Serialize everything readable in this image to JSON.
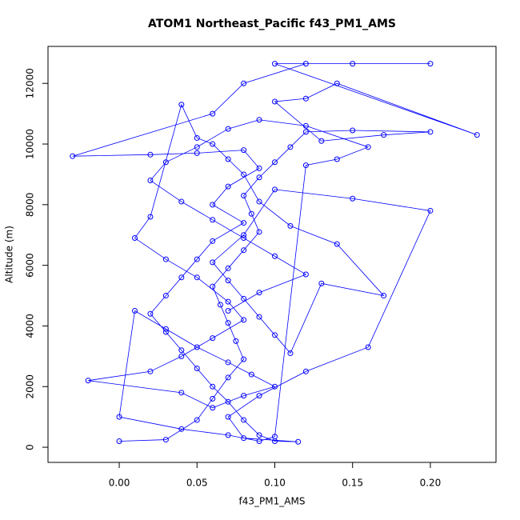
{
  "chart_data": {
    "type": "line",
    "markers": "circle",
    "title": "ATOM1 Northeast_Pacific f43_PM1_AMS",
    "x_label": "f43_PM1_AMS",
    "y_label": "Altitude (m)",
    "color": "#0000ff",
    "grid": false,
    "xlim": [
      -0.0458,
      0.2422
    ],
    "ylim": [
      -500,
      13220
    ],
    "xticks": [
      {
        "value": 0,
        "label": "0.00"
      },
      {
        "value": 0.05,
        "label": "0.05"
      },
      {
        "value": 0.1,
        "label": "0.10"
      },
      {
        "value": 0.15,
        "label": "0.15"
      },
      {
        "value": 0.2,
        "label": "0.20"
      }
    ],
    "yticks": [
      0,
      2000,
      4000,
      6000,
      8000,
      10000,
      12000
    ],
    "x": [
      0.0,
      0.03,
      0.05,
      0.06,
      0.07,
      0.08,
      0.075,
      0.07,
      0.065,
      0.06,
      0.07,
      0.08,
      0.09,
      0.085,
      0.08,
      0.09,
      0.1,
      0.11,
      0.12,
      0.15,
      0.2,
      0.17,
      0.13,
      0.1,
      0.12,
      0.14,
      0.23,
      0.1,
      0.15,
      0.2,
      0.12,
      0.08,
      0.06,
      -0.03,
      0.02,
      0.05,
      0.08,
      0.09,
      0.07,
      0.06,
      0.08,
      0.06,
      0.05,
      0.04,
      0.03,
      0.02,
      0.03,
      0.04,
      0.05,
      0.06,
      0.07,
      0.08,
      0.09,
      0.1,
      0.115,
      0.08,
      0.07,
      0.09,
      0.12,
      0.16,
      0.2,
      0.15,
      0.1,
      0.08,
      0.06,
      0.07,
      0.08,
      0.09,
      0.1,
      0.11,
      0.13,
      0.17,
      0.14,
      0.11,
      0.09,
      0.08,
      0.07,
      0.06,
      0.05,
      0.04,
      0.02,
      0.01,
      0.03,
      0.05,
      0.07,
      0.08,
      0.06,
      0.04,
      0.02,
      -0.02,
      0.04,
      0.06,
      0.08,
      0.1,
      0.085,
      0.07,
      0.05,
      0.03,
      0.01,
      0.0,
      0.04,
      0.07,
      0.09,
      0.1,
      0.12,
      0.14,
      0.16,
      0.12,
      0.09,
      0.07,
      0.05,
      0.03,
      0.02,
      0.04,
      0.06,
      0.08,
      0.1,
      0.12,
      0.09,
      0.07
    ],
    "values": [
      200,
      250,
      900,
      1600,
      2300,
      2900,
      3500,
      4100,
      4700,
      5300,
      5900,
      6500,
      7100,
      7700,
      8300,
      8900,
      9400,
      9900,
      10400,
      10450,
      10400,
      10300,
      10100,
      11400,
      11500,
      12000,
      10300,
      12650,
      12650,
      12650,
      12650,
      12000,
      11000,
      9600,
      9650,
      9700,
      9800,
      9200,
      8600,
      8000,
      7400,
      6800,
      6200,
      5600,
      5000,
      4400,
      3800,
      3200,
      2600,
      2000,
      1500,
      900,
      400,
      200,
      180,
      300,
      1000,
      1700,
      2500,
      3300,
      7800,
      8200,
      8500,
      7000,
      6100,
      5500,
      4900,
      4300,
      3700,
      3100,
      5400,
      5000,
      6700,
      7300,
      8100,
      9000,
      9500,
      10000,
      10200,
      11300,
      7600,
      6900,
      6200,
      5600,
      4800,
      4200,
      3600,
      3000,
      2500,
      2200,
      1800,
      1300,
      1700,
      2000,
      2400,
      2800,
      3300,
      3900,
      4500,
      1000,
      600,
      400,
      200,
      350,
      9300,
      9500,
      9900,
      10600,
      10800,
      10500,
      9900,
      9400,
      8800,
      8100,
      7500,
      6900,
      6300,
      5700,
      5100,
      4500
    ]
  }
}
